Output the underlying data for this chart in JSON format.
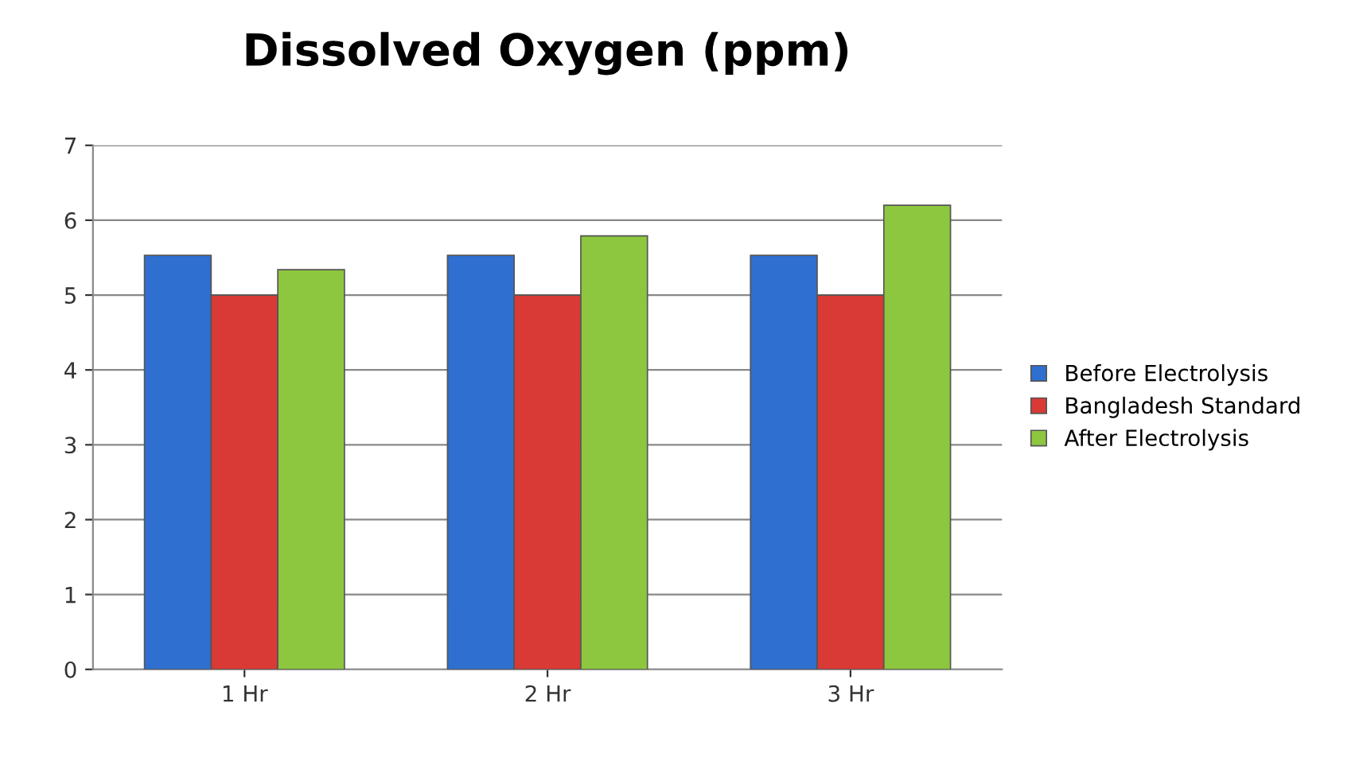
{
  "chart_data": {
    "type": "bar",
    "title": "Dissolved Oxygen (ppm)",
    "categories": [
      "1 Hr",
      "2 Hr",
      "3 Hr"
    ],
    "series": [
      {
        "name": "Before Electrolysis",
        "color": "#2f6fd0",
        "values": [
          5.53,
          5.53,
          5.53
        ]
      },
      {
        "name": "Bangladesh Standard",
        "color": "#d93a36",
        "values": [
          5.0,
          5.0,
          5.0
        ]
      },
      {
        "name": "After Electrolysis",
        "color": "#8dc63f",
        "values": [
          5.34,
          5.79,
          6.2
        ]
      }
    ],
    "ylim": [
      0,
      7
    ],
    "yticks": [
      0,
      1,
      2,
      3,
      4,
      5,
      6,
      7
    ],
    "grid": "y",
    "legend": "right"
  }
}
